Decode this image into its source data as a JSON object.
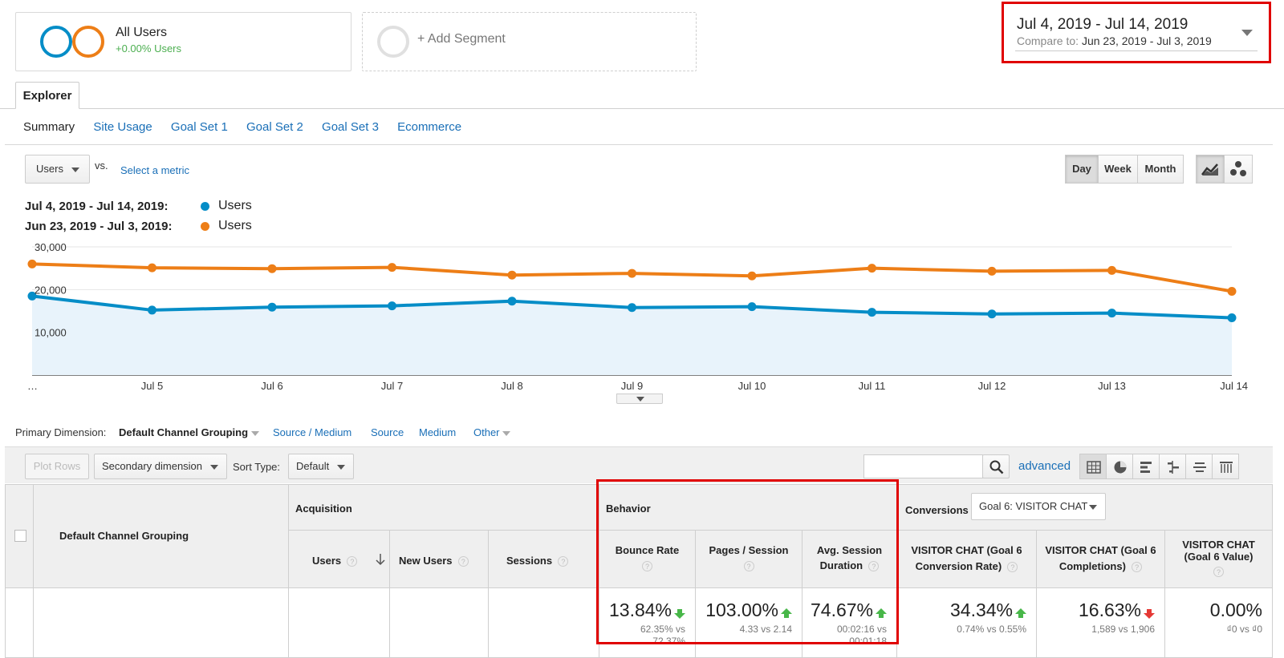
{
  "segments": {
    "all_users": {
      "title": "All Users",
      "subtitle": "+0.00% Users"
    },
    "add_segment": {
      "label": "+ Add Segment"
    }
  },
  "date_range": {
    "primary": "Jul 4, 2019 - Jul 14, 2019",
    "compare_label": "Compare to:",
    "compare_value": "Jun 23, 2019 - Jul 3, 2019"
  },
  "tabs": {
    "explorer": "Explorer"
  },
  "subtabs": [
    "Summary",
    "Site Usage",
    "Goal Set 1",
    "Goal Set 2",
    "Goal Set 3",
    "Ecommerce"
  ],
  "controls": {
    "metric_select": "Users",
    "vs": "vs.",
    "select_metric": "Select a metric",
    "period_buttons": [
      "Day",
      "Week",
      "Month"
    ]
  },
  "legend": [
    {
      "range": "Jul 4, 2019 - Jul 14, 2019:",
      "metric": "Users",
      "color": "#058dc7"
    },
    {
      "range": "Jun 23, 2019 - Jul 3, 2019:",
      "metric": "Users",
      "color": "#ed7e17"
    }
  ],
  "chart_data": {
    "type": "line",
    "categories": [
      "…",
      "Jul 5",
      "Jul 6",
      "Jul 7",
      "Jul 8",
      "Jul 9",
      "Jul 10",
      "Jul 11",
      "Jul 12",
      "Jul 13",
      "Jul 14"
    ],
    "y_ticks": [
      "30,000",
      "20,000",
      "10,000"
    ],
    "ylim": [
      0,
      30000
    ],
    "series": [
      {
        "name": "Users",
        "period": "Jul 4, 2019 - Jul 14, 2019",
        "color": "#058dc7",
        "fill": true,
        "values": [
          18500,
          15200,
          15900,
          16200,
          17300,
          15800,
          16000,
          14700,
          14300,
          14500,
          13400
        ]
      },
      {
        "name": "Users",
        "period": "Jun 23, 2019 - Jul 3, 2019",
        "color": "#ed7e17",
        "fill": false,
        "values": [
          26000,
          25100,
          24900,
          25200,
          23400,
          23800,
          23200,
          25000,
          24300,
          24500,
          19600
        ]
      }
    ],
    "grid": true
  },
  "primary_dimension": {
    "label": "Primary Dimension:",
    "active": "Default Channel Grouping",
    "options": [
      "Source / Medium",
      "Source",
      "Medium",
      "Other"
    ]
  },
  "table_toolbar": {
    "plot_rows": "Plot Rows",
    "secondary_dimension": "Secondary dimension",
    "sort_type_label": "Sort Type:",
    "sort_type_value": "Default",
    "search_value": "",
    "advanced": "advanced"
  },
  "table": {
    "dimension_header": "Default Channel Grouping",
    "groups": {
      "acquisition": "Acquisition",
      "behavior": "Behavior",
      "conversions": "Conversions"
    },
    "goal_select": "Goal 6: VISITOR CHAT",
    "columns": {
      "users": "Users",
      "new_users": "New Users",
      "sessions": "Sessions",
      "bounce_rate": "Bounce Rate",
      "pages_session": "Pages / Session",
      "avg_session_l1": "Avg. Session",
      "avg_session_l2": "Duration",
      "vc_rate_l1": "VISITOR CHAT (Goal 6",
      "vc_rate_l2": "Conversion Rate)",
      "vc_comp_l1": "VISITOR CHAT (Goal 6",
      "vc_comp_l2": "Completions)",
      "vc_value_l1": "VISITOR CHAT",
      "vc_value_l2": "(Goal 6 Value)"
    },
    "totals": {
      "bounce_rate": {
        "value": "13.84%",
        "sub1": "62.35% vs",
        "sub2": "72.37%"
      },
      "pages_session": {
        "value": "103.00%",
        "sub1": "4.33 vs 2.14"
      },
      "avg_session": {
        "value": "74.67%",
        "sub1": "00:02:16 vs",
        "sub2": "00:01:18"
      },
      "vc_rate": {
        "value": "34.34%",
        "sub1": "0.74% vs 0.55%"
      },
      "vc_comp": {
        "value": "16.63%",
        "sub1": "1,589 vs 1,906"
      },
      "vc_value": {
        "value": "0.00%",
        "sub1": "₫0 vs ₫0"
      }
    },
    "help": "?"
  },
  "colors": {
    "highlight": "#e00000",
    "link": "#1a6fb7",
    "up": "#48b749",
    "down": "#e53935"
  }
}
